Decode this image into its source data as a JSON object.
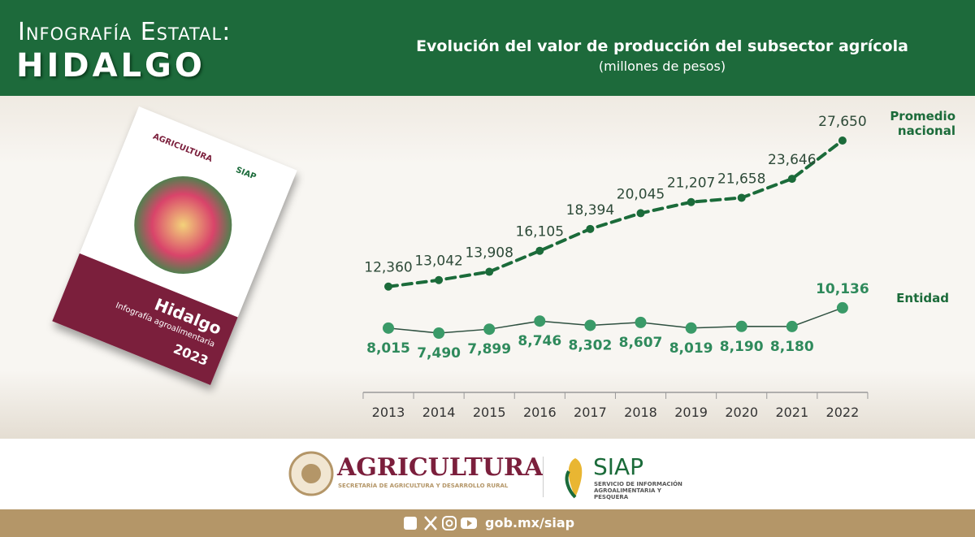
{
  "header": {
    "kicker": "Infografía Estatal:",
    "state": "HIDALGO"
  },
  "book": {
    "agency": "AGRICULTURA",
    "siap": "SIAP",
    "title": "Hidalgo",
    "subtitle": "Infografía agroalimentaria",
    "year": "2023"
  },
  "chart_data": {
    "type": "line",
    "title": "Evolución del valor de producción del subsector agrícola",
    "subtitle": "(millones de pesos)",
    "categories": [
      "2013",
      "2014",
      "2015",
      "2016",
      "2017",
      "2018",
      "2019",
      "2020",
      "2021",
      "2022"
    ],
    "series": [
      {
        "name": "Promedio nacional",
        "color": "#1b6b3a",
        "dashed": true,
        "values": [
          12360,
          13042,
          13908,
          16105,
          18394,
          20045,
          21207,
          21658,
          23646,
          27650
        ],
        "value_labels": [
          "12,360",
          "13,042",
          "13,908",
          "16,105",
          "18,394",
          "20,045",
          "21,207",
          "21,658",
          "23,646",
          "27,650"
        ]
      },
      {
        "name": "Entidad",
        "color": "#3a9a68",
        "dashed": false,
        "values": [
          8015,
          7490,
          7899,
          8746,
          8302,
          8607,
          8019,
          8190,
          8180,
          10136
        ],
        "value_labels": [
          "8,015",
          "7,490",
          "7,899",
          "8,746",
          "8,302",
          "8,607",
          "8,019",
          "8,190",
          "8,180",
          "10,136"
        ]
      }
    ]
  },
  "footer": {
    "agency": "AGRICULTURA",
    "agency_sub": "SECRETARÍA DE AGRICULTURA Y DESARROLLO RURAL",
    "siap": "SIAP",
    "siap_sub": "SERVICIO DE INFORMACIÓN AGROALIMENTARIA Y PESQUERA",
    "url": "gob.mx/siap"
  }
}
